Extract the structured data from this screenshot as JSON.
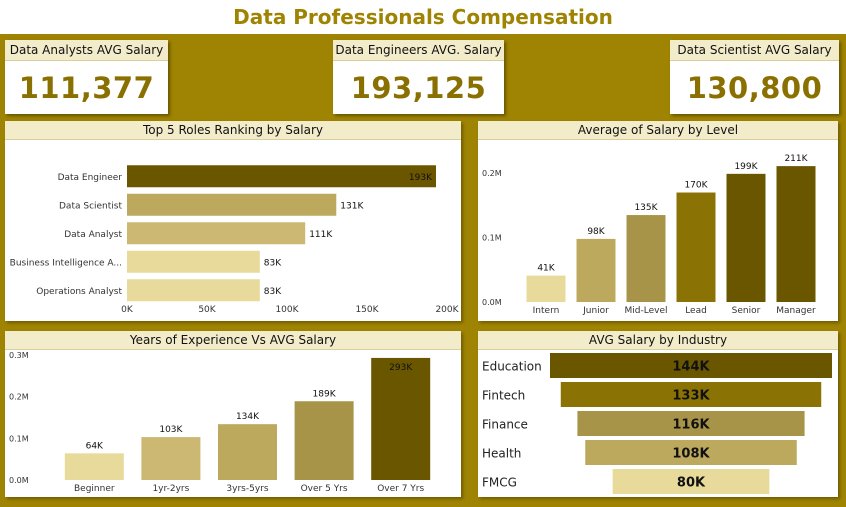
{
  "page": {
    "title": "Data Professionals Compensation"
  },
  "kpis": [
    {
      "label": "Data Analysts AVG Salary",
      "value": "111,377"
    },
    {
      "label": "Data Engineers AVG. Salary",
      "value": "193,125"
    },
    {
      "label": "Data Scientist AVG Salary",
      "value": "130,800"
    }
  ],
  "colors": {
    "background": "#9f8302",
    "title": "#9f8302",
    "kpi_value": "#8a7000",
    "header_bg": "#f3eccb",
    "ramp": [
      "#6b5600",
      "#8a7304",
      "#a89448",
      "#bca95e",
      "#ccb873",
      "#e8da9a"
    ]
  },
  "chart_data": [
    {
      "type": "bar",
      "orientation": "horizontal",
      "title": "Top 5 Roles Ranking by Salary",
      "categories": [
        "Data Engineer",
        "Data Scientist",
        "Data Analyst",
        "Business Intelligence A...",
        "Operations Analyst"
      ],
      "values": [
        193125,
        130800,
        111377,
        83000,
        83000
      ],
      "data_labels": [
        "193K",
        "131K",
        "111K",
        "83K",
        "83K"
      ],
      "xlim": [
        0,
        200000
      ],
      "ticks": [
        0,
        50000,
        100000,
        150000,
        200000
      ],
      "tick_labels": [
        "0K",
        "50K",
        "100K",
        "150K",
        "200K"
      ],
      "xlabel": "",
      "ylabel": ""
    },
    {
      "type": "bar",
      "title": "Average of Salary by Level",
      "categories": [
        "Intern",
        "Junior",
        "Mid-Level",
        "Lead",
        "Senior",
        "Manager"
      ],
      "values": [
        41000,
        98000,
        135000,
        170000,
        199000,
        211000
      ],
      "data_labels": [
        "41K",
        "98K",
        "135K",
        "170K",
        "199K",
        "211K"
      ],
      "ylim": [
        0,
        250000
      ],
      "ticks": [
        0,
        100000,
        200000
      ],
      "tick_labels": [
        "0.0M",
        "0.1M",
        "0.2M"
      ],
      "xlabel": "",
      "ylabel": ""
    },
    {
      "type": "bar",
      "title": "Years of Experience Vs AVG Salary",
      "categories": [
        "Beginner",
        "1yr-2yrs",
        "3yrs-5yrs",
        "Over 5 Yrs",
        "Over 7 Yrs"
      ],
      "values": [
        64000,
        103000,
        134000,
        189000,
        293000
      ],
      "data_labels": [
        "64K",
        "103K",
        "134K",
        "189K",
        "293K"
      ],
      "ylim": [
        0,
        300000
      ],
      "ticks": [
        0,
        100000,
        200000,
        300000
      ],
      "tick_labels": [
        "0.0M",
        "0.1M",
        "0.2M",
        "0.3M"
      ],
      "xlabel": "",
      "ylabel": ""
    },
    {
      "type": "funnel",
      "title": "AVG Salary by Industry",
      "categories": [
        "Education",
        "Fintech",
        "Finance",
        "Health",
        "FMCG"
      ],
      "values": [
        144000,
        133000,
        116000,
        108000,
        80000
      ],
      "data_labels": [
        "144K",
        "133K",
        "116K",
        "108K",
        "80K"
      ]
    }
  ]
}
